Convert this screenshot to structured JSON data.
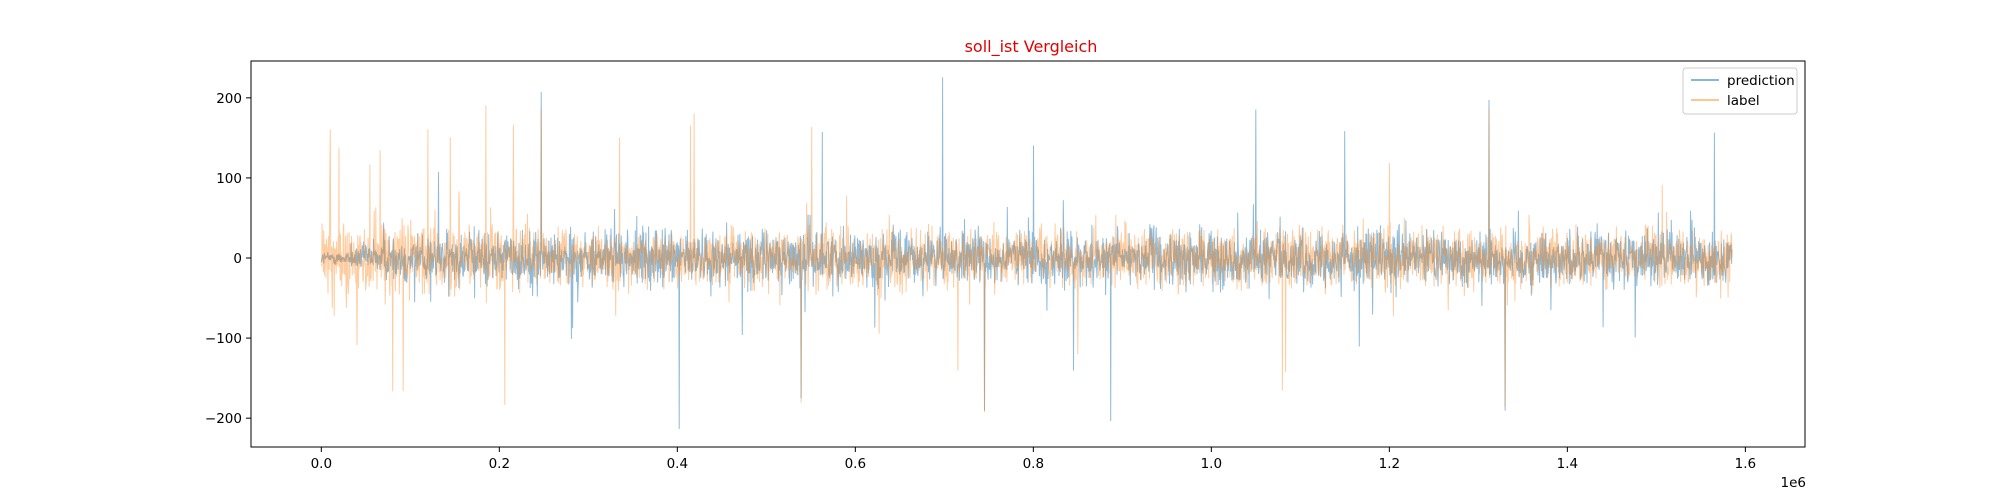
{
  "chart_data": {
    "type": "line",
    "title": "soll_ist Vergleich",
    "title_color": "#e00000",
    "xlabel": "",
    "ylabel": "",
    "x_offset_label": "1e6",
    "xlim": [
      -0.079,
      1.667
    ],
    "ylim": [
      -236,
      246
    ],
    "x_ticks": [
      0.0,
      0.2,
      0.4,
      0.6,
      0.8,
      1.0,
      1.2,
      1.4,
      1.6
    ],
    "x_tick_labels": [
      "0.0",
      "0.2",
      "0.4",
      "0.6",
      "0.8",
      "1.0",
      "1.2",
      "1.4",
      "1.6"
    ],
    "y_ticks": [
      -200,
      -100,
      0,
      100,
      200
    ],
    "y_tick_labels": [
      "−200",
      "−100",
      "0",
      "100",
      "200"
    ],
    "grid": false,
    "legend_position": "top-right",
    "x_end": 1.585,
    "series": [
      {
        "name": "prediction",
        "color": "#1f77b4",
        "alpha": 0.5,
        "spikes": [
          [
            0.247,
            207
          ],
          [
            0.402,
            -213
          ],
          [
            0.698,
            225
          ],
          [
            0.887,
            -203
          ],
          [
            0.539,
            -175
          ],
          [
            0.563,
            157
          ],
          [
            0.745,
            -190
          ],
          [
            0.8,
            140
          ],
          [
            0.845,
            -140
          ],
          [
            1.05,
            185
          ],
          [
            1.15,
            158
          ],
          [
            1.312,
            197
          ],
          [
            1.33,
            -190
          ],
          [
            1.565,
            156
          ],
          [
            1.44,
            -86
          ],
          [
            1.166,
            -110
          ]
        ]
      },
      {
        "name": "label",
        "color": "#ff7f0e",
        "alpha": 0.4,
        "spikes": [
          [
            0.01,
            160
          ],
          [
            0.02,
            137
          ],
          [
            0.066,
            134
          ],
          [
            0.04,
            -108
          ],
          [
            0.08,
            -166
          ],
          [
            0.092,
            -166
          ],
          [
            0.12,
            160
          ],
          [
            0.145,
            150
          ],
          [
            0.185,
            190
          ],
          [
            0.206,
            -183
          ],
          [
            0.216,
            166
          ],
          [
            0.247,
            185
          ],
          [
            0.335,
            150
          ],
          [
            0.415,
            165
          ],
          [
            0.419,
            180
          ],
          [
            0.539,
            -180
          ],
          [
            0.551,
            163
          ],
          [
            0.715,
            -140
          ],
          [
            0.745,
            -192
          ],
          [
            0.85,
            -120
          ],
          [
            1.08,
            -165
          ],
          [
            1.2,
            118
          ],
          [
            1.312,
            187
          ],
          [
            1.33,
            -185
          ]
        ]
      }
    ]
  }
}
